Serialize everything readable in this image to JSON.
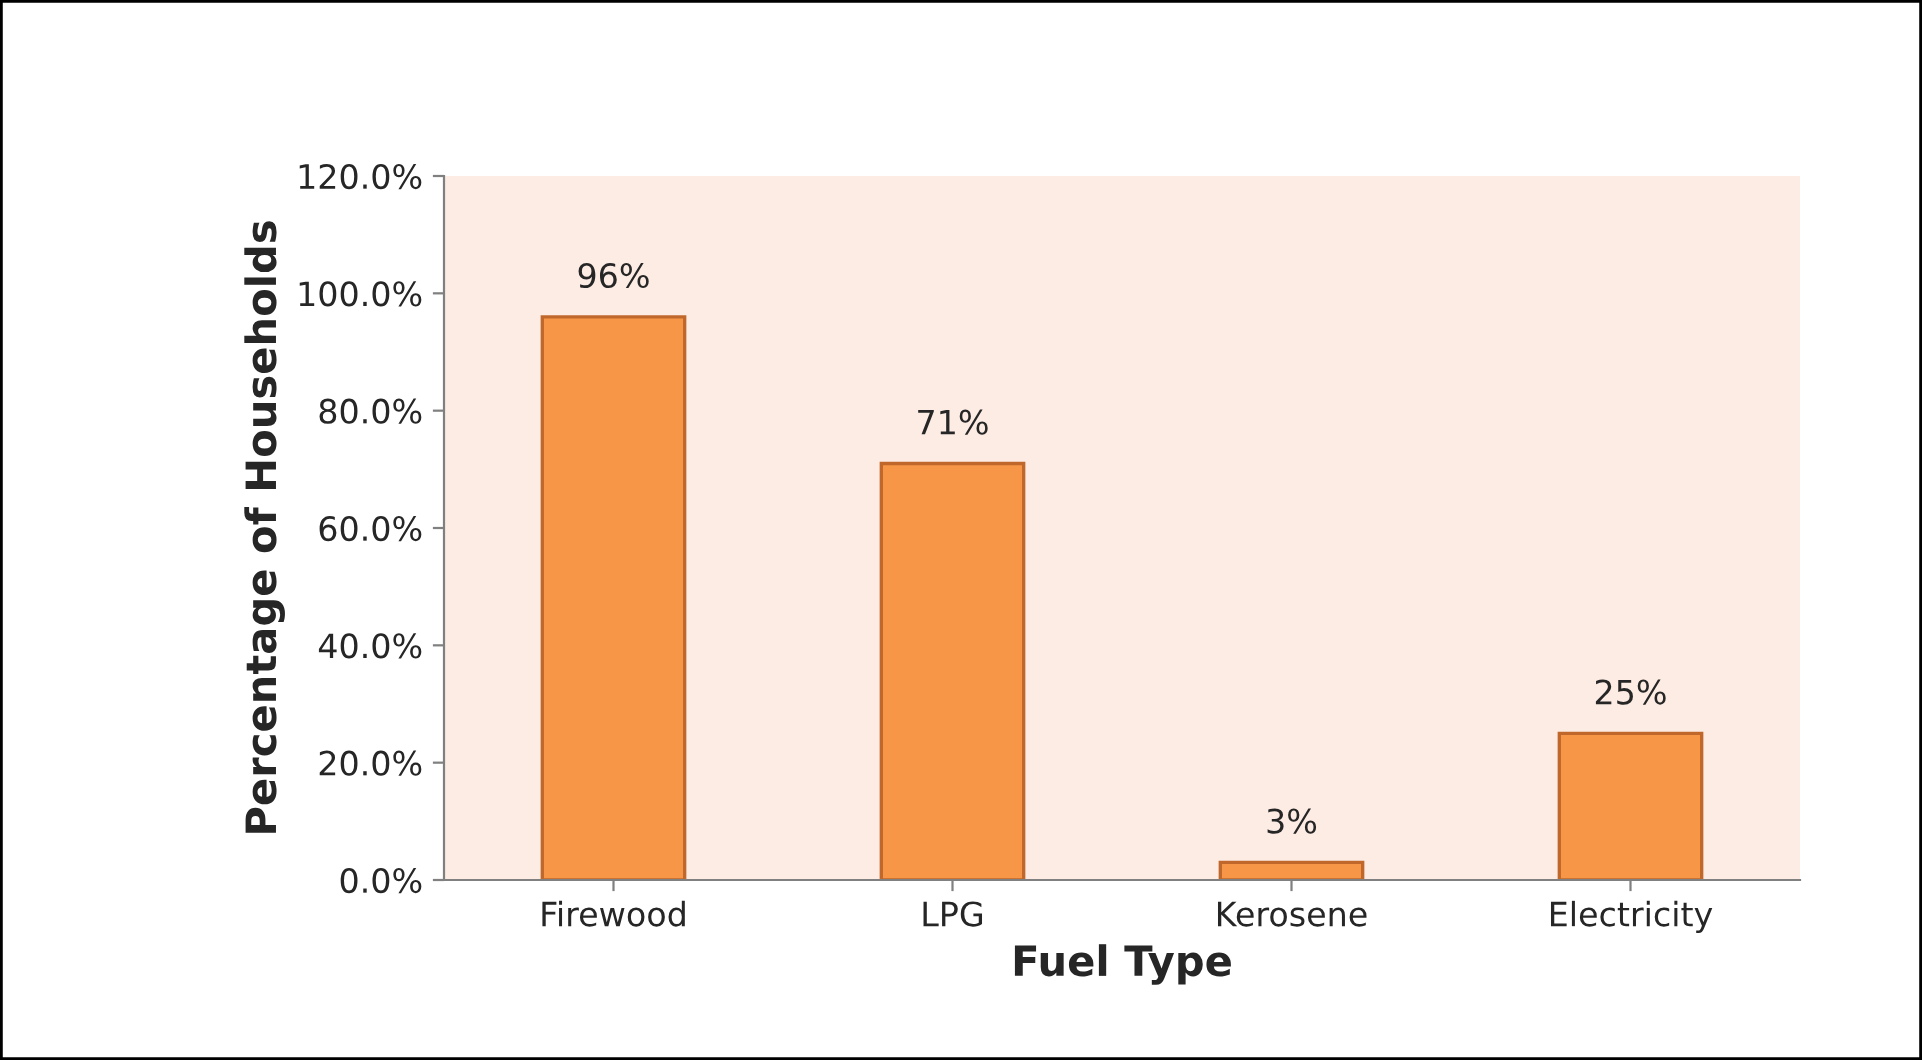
{
  "chart_data": {
    "type": "bar",
    "xlabel": "Fuel Type",
    "ylabel": "Percentage of Households",
    "categories": [
      "Firewood",
      "LPG",
      "Kerosene",
      "Electricity"
    ],
    "values": [
      96,
      71,
      3,
      25
    ],
    "color": "#f79646",
    "value_labels": [
      "96%",
      "71%",
      "3%",
      "25%"
    ],
    "ylim": [
      0,
      120
    ],
    "yticks": [
      {
        "value": 0,
        "label": "0.0%"
      },
      {
        "value": 20,
        "label": "20.0%"
      },
      {
        "value": 40,
        "label": "40.0%"
      },
      {
        "value": 60,
        "label": "60.0%"
      },
      {
        "value": 80,
        "label": "80.0%"
      },
      {
        "value": 100,
        "label": "100.0%"
      },
      {
        "value": 120,
        "label": "120.0%"
      }
    ],
    "grid": false,
    "legend": false
  }
}
